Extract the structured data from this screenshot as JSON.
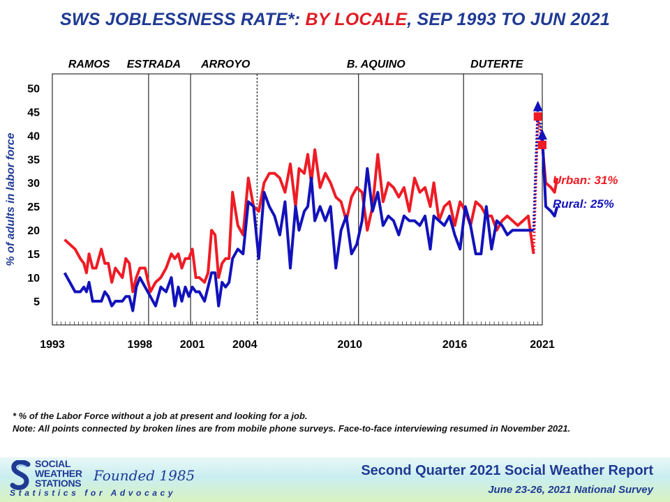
{
  "title": {
    "part1": "SWS JOBLESSNESS RATE*: ",
    "part2": "BY LOCALE",
    "part3": ", SEP 1993 TO JUN 2021"
  },
  "colors": {
    "urban": "#ee1c25",
    "rural": "#1212bb",
    "navy": "#1f3a93"
  },
  "chart_data": {
    "type": "line",
    "title": "SWS JOBLESSNESS RATE*: BY LOCALE, SEP 1993 TO JUN 2021",
    "xlabel": "",
    "ylabel": "% of adults in labor force",
    "x_ticks": [
      1993,
      1998,
      2001,
      2004,
      2010,
      2016,
      2021
    ],
    "y_ticks": [
      5,
      10,
      15,
      20,
      25,
      30,
      35,
      40,
      45,
      50
    ],
    "xlim": [
      1993,
      2021
    ],
    "ylim": [
      0,
      53
    ],
    "grid": false,
    "presidents": [
      {
        "name": "RAMOS",
        "x": 1995.1
      },
      {
        "name": "ESTRADA",
        "x": 1998.8
      },
      {
        "name": "ARROYO",
        "x": 2002.9
      },
      {
        "name": "B. AQUINO",
        "x": 2011.5
      },
      {
        "name": "DUTERTE",
        "x": 2018.4
      }
    ],
    "term_lines": [
      {
        "x": 1998.5,
        "style": "solid"
      },
      {
        "x": 2000.9,
        "style": "solid"
      },
      {
        "x": 2004.7,
        "style": "dashed"
      },
      {
        "x": 2010.5,
        "style": "solid"
      },
      {
        "x": 2016.5,
        "style": "solid"
      }
    ],
    "series": [
      {
        "name": "Urban: 31%",
        "color": "#ee1c25",
        "values": [
          [
            1993.7,
            18
          ],
          [
            1994.0,
            17
          ],
          [
            1994.3,
            16
          ],
          [
            1994.6,
            14
          ],
          [
            1994.8,
            13
          ],
          [
            1994.95,
            11
          ],
          [
            1995.1,
            15
          ],
          [
            1995.3,
            12
          ],
          [
            1995.5,
            12
          ],
          [
            1995.8,
            16
          ],
          [
            1996.0,
            13
          ],
          [
            1996.2,
            13
          ],
          [
            1996.4,
            9
          ],
          [
            1996.6,
            12
          ],
          [
            1996.8,
            11
          ],
          [
            1997.0,
            10
          ],
          [
            1997.2,
            14
          ],
          [
            1997.4,
            13
          ],
          [
            1997.6,
            7
          ],
          [
            1997.8,
            10
          ],
          [
            1998.0,
            12
          ],
          [
            1998.3,
            12
          ],
          [
            1998.6,
            7
          ],
          [
            1998.9,
            9
          ],
          [
            1999.2,
            10
          ],
          [
            1999.5,
            12
          ],
          [
            1999.8,
            15
          ],
          [
            2000.0,
            14
          ],
          [
            2000.2,
            15
          ],
          [
            2000.4,
            12
          ],
          [
            2000.6,
            14
          ],
          [
            2000.8,
            14
          ],
          [
            2001.0,
            16
          ],
          [
            2001.2,
            10
          ],
          [
            2001.4,
            10
          ],
          [
            2001.7,
            9
          ],
          [
            2001.9,
            11
          ],
          [
            2002.1,
            20
          ],
          [
            2002.3,
            19
          ],
          [
            2002.5,
            10
          ],
          [
            2002.7,
            13
          ],
          [
            2002.9,
            14
          ],
          [
            2003.1,
            14
          ],
          [
            2003.3,
            28
          ],
          [
            2003.6,
            21
          ],
          [
            2003.9,
            19
          ],
          [
            2004.2,
            31
          ],
          [
            2004.5,
            25
          ],
          [
            2004.8,
            24
          ],
          [
            2005.1,
            30
          ],
          [
            2005.4,
            32
          ],
          [
            2005.7,
            32
          ],
          [
            2006.0,
            31
          ],
          [
            2006.3,
            28
          ],
          [
            2006.6,
            34
          ],
          [
            2006.9,
            25
          ],
          [
            2007.1,
            33
          ],
          [
            2007.4,
            32
          ],
          [
            2007.6,
            36
          ],
          [
            2007.8,
            30
          ],
          [
            2008.0,
            37
          ],
          [
            2008.3,
            29
          ],
          [
            2008.6,
            32
          ],
          [
            2008.9,
            30
          ],
          [
            2009.2,
            27
          ],
          [
            2009.5,
            26
          ],
          [
            2009.8,
            22
          ],
          [
            2010.1,
            27
          ],
          [
            2010.4,
            29
          ],
          [
            2010.7,
            28
          ],
          [
            2011.0,
            20
          ],
          [
            2011.3,
            25
          ],
          [
            2011.6,
            36
          ],
          [
            2011.9,
            26
          ],
          [
            2012.2,
            30
          ],
          [
            2012.5,
            29
          ],
          [
            2012.8,
            27
          ],
          [
            2013.1,
            29
          ],
          [
            2013.4,
            24
          ],
          [
            2013.7,
            31
          ],
          [
            2014.0,
            28
          ],
          [
            2014.3,
            29
          ],
          [
            2014.6,
            25
          ],
          [
            2014.8,
            30
          ],
          [
            2015.1,
            22
          ],
          [
            2015.4,
            25
          ],
          [
            2015.7,
            26
          ],
          [
            2016.0,
            21
          ],
          [
            2016.3,
            26
          ],
          [
            2016.6,
            24
          ],
          [
            2016.9,
            21
          ],
          [
            2017.2,
            26
          ],
          [
            2017.5,
            25
          ],
          [
            2017.8,
            23
          ],
          [
            2018.1,
            23
          ],
          [
            2018.4,
            20
          ],
          [
            2018.7,
            22
          ],
          [
            2019.0,
            23
          ],
          [
            2019.3,
            22
          ],
          [
            2019.6,
            21
          ],
          [
            2019.9,
            22
          ],
          [
            2020.2,
            23
          ],
          [
            2020.5,
            15
          ]
        ],
        "mobile_dotted": [
          [
            2020.5,
            15
          ],
          [
            2020.75,
            44
          ],
          [
            2021.0,
            38
          ]
        ],
        "final": [
          [
            2021.0,
            38
          ],
          [
            2021.2,
            30
          ],
          [
            2021.5,
            29
          ],
          [
            2021.7,
            28
          ],
          [
            2021.85,
            31
          ]
        ]
      },
      {
        "name": "Rural: 25%",
        "color": "#1212bb",
        "values": [
          [
            1993.7,
            11
          ],
          [
            1994.0,
            9
          ],
          [
            1994.3,
            7
          ],
          [
            1994.6,
            7
          ],
          [
            1994.8,
            8
          ],
          [
            1994.95,
            7
          ],
          [
            1995.1,
            9
          ],
          [
            1995.3,
            5
          ],
          [
            1995.5,
            5
          ],
          [
            1995.8,
            5
          ],
          [
            1996.0,
            7
          ],
          [
            1996.2,
            6
          ],
          [
            1996.4,
            4
          ],
          [
            1996.6,
            5
          ],
          [
            1996.8,
            5
          ],
          [
            1997.0,
            5
          ],
          [
            1997.2,
            6
          ],
          [
            1997.4,
            6
          ],
          [
            1997.6,
            3
          ],
          [
            1997.8,
            8
          ],
          [
            1998.0,
            10
          ],
          [
            1998.3,
            8
          ],
          [
            1998.6,
            6
          ],
          [
            1998.9,
            4
          ],
          [
            1999.2,
            8
          ],
          [
            1999.5,
            7
          ],
          [
            1999.8,
            10
          ],
          [
            2000.0,
            4
          ],
          [
            2000.2,
            8
          ],
          [
            2000.4,
            5
          ],
          [
            2000.6,
            8
          ],
          [
            2000.8,
            6
          ],
          [
            2001.0,
            8
          ],
          [
            2001.2,
            7
          ],
          [
            2001.4,
            7
          ],
          [
            2001.7,
            5
          ],
          [
            2001.9,
            8
          ],
          [
            2002.1,
            11
          ],
          [
            2002.3,
            11
          ],
          [
            2002.5,
            4
          ],
          [
            2002.7,
            9
          ],
          [
            2002.9,
            8
          ],
          [
            2003.1,
            9
          ],
          [
            2003.3,
            14
          ],
          [
            2003.6,
            16
          ],
          [
            2003.9,
            15
          ],
          [
            2004.2,
            26
          ],
          [
            2004.5,
            25
          ],
          [
            2004.8,
            14
          ],
          [
            2005.1,
            28
          ],
          [
            2005.4,
            25
          ],
          [
            2005.7,
            23
          ],
          [
            2006.0,
            19
          ],
          [
            2006.3,
            26
          ],
          [
            2006.6,
            12
          ],
          [
            2006.9,
            25
          ],
          [
            2007.1,
            20
          ],
          [
            2007.4,
            24
          ],
          [
            2007.6,
            25
          ],
          [
            2007.8,
            31
          ],
          [
            2008.0,
            22
          ],
          [
            2008.3,
            25
          ],
          [
            2008.6,
            22
          ],
          [
            2008.9,
            25
          ],
          [
            2009.2,
            12
          ],
          [
            2009.5,
            20
          ],
          [
            2009.8,
            23
          ],
          [
            2010.1,
            15
          ],
          [
            2010.4,
            17
          ],
          [
            2010.7,
            22
          ],
          [
            2011.0,
            33
          ],
          [
            2011.3,
            24
          ],
          [
            2011.6,
            28
          ],
          [
            2011.9,
            21
          ],
          [
            2012.2,
            23
          ],
          [
            2012.5,
            22
          ],
          [
            2012.8,
            19
          ],
          [
            2013.1,
            23
          ],
          [
            2013.4,
            22
          ],
          [
            2013.7,
            22
          ],
          [
            2014.0,
            21
          ],
          [
            2014.3,
            23
          ],
          [
            2014.6,
            16
          ],
          [
            2014.8,
            23
          ],
          [
            2015.1,
            22
          ],
          [
            2015.4,
            21
          ],
          [
            2015.7,
            23
          ],
          [
            2016.0,
            19
          ],
          [
            2016.3,
            16
          ],
          [
            2016.6,
            25
          ],
          [
            2016.9,
            21
          ],
          [
            2017.2,
            15
          ],
          [
            2017.5,
            15
          ],
          [
            2017.8,
            25
          ],
          [
            2018.1,
            16
          ],
          [
            2018.4,
            22
          ],
          [
            2018.7,
            21
          ],
          [
            2019.0,
            19
          ],
          [
            2019.3,
            20
          ],
          [
            2019.6,
            20
          ],
          [
            2019.9,
            20
          ],
          [
            2020.2,
            20
          ],
          [
            2020.5,
            20
          ]
        ],
        "mobile_dotted": [
          [
            2020.5,
            20
          ],
          [
            2020.75,
            46
          ],
          [
            2021.0,
            40
          ]
        ],
        "final": [
          [
            2021.0,
            40
          ],
          [
            2021.2,
            25
          ],
          [
            2021.5,
            24
          ],
          [
            2021.7,
            23
          ],
          [
            2021.85,
            25
          ]
        ]
      }
    ]
  },
  "legend": {
    "urban": "Urban: 31%",
    "rural": "Rural: 25%"
  },
  "footnotes": {
    "definition": "* % of the Labor Force without  a job at present  and looking  for a job.",
    "note": "Note: All points  connected  by broken lines are from mobile phone surveys. Face-to-face interviewing resumed in November 2021."
  },
  "banner": {
    "org_line1": "SOCIAL",
    "org_line2": "WEATHER",
    "org_line3": "STATIONS",
    "founded": "Founded 1985",
    "tagline": "Statistics for Advocacy",
    "report_title": "Second Quarter 2021 Social Weather Report",
    "survey_date": "June 23-26, 2021 National Survey"
  }
}
